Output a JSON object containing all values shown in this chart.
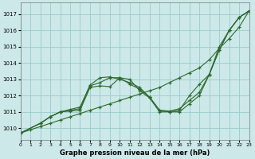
{
  "xlabel": "Graphe pression niveau de la mer (hPa)",
  "bg_color": "#cce8e8",
  "grid_color": "#99cccc",
  "line_color": "#2d6a2d",
  "xmin": 0,
  "xmax": 23,
  "ymin": 1009.3,
  "ymax": 1017.7,
  "yticks": [
    1010,
    1011,
    1012,
    1013,
    1014,
    1015,
    1016,
    1017
  ],
  "xticks": [
    0,
    1,
    2,
    3,
    4,
    5,
    6,
    7,
    8,
    9,
    10,
    11,
    12,
    13,
    14,
    15,
    16,
    17,
    18,
    19,
    20,
    21,
    22,
    23
  ],
  "lines": [
    {
      "x": [
        0,
        1,
        2,
        3,
        4,
        5,
        6,
        7,
        8,
        9,
        10,
        11,
        12,
        13,
        14,
        15,
        16,
        17,
        18,
        19,
        20,
        21,
        22,
        23
      ],
      "y": [
        1009.7,
        1009.9,
        1010.1,
        1010.3,
        1010.5,
        1010.7,
        1010.9,
        1011.1,
        1011.3,
        1011.5,
        1011.7,
        1011.9,
        1012.1,
        1012.3,
        1012.5,
        1012.8,
        1013.1,
        1013.4,
        1013.7,
        1014.2,
        1014.9,
        1015.5,
        1016.2,
        1017.2
      ]
    },
    {
      "x": [
        0,
        2,
        3,
        4,
        5,
        6,
        7,
        8,
        9,
        10,
        11,
        12,
        13,
        14,
        15,
        16,
        17,
        18,
        19,
        20,
        21,
        22,
        23
      ],
      "y": [
        1009.7,
        1010.3,
        1010.7,
        1011.0,
        1011.1,
        1011.2,
        1012.6,
        1012.8,
        1013.1,
        1013.1,
        1012.7,
        1012.4,
        1011.9,
        1011.1,
        1011.0,
        1011.1,
        1012.0,
        1012.7,
        1013.3,
        1015.0,
        1016.0,
        1016.8,
        1017.2
      ]
    },
    {
      "x": [
        0,
        2,
        3,
        4,
        5,
        6,
        7,
        8,
        9,
        10,
        11,
        12,
        13,
        14,
        15,
        16,
        17,
        18,
        19,
        20,
        21,
        22,
        23
      ],
      "y": [
        1009.7,
        1010.3,
        1010.7,
        1011.0,
        1011.15,
        1011.3,
        1012.65,
        1013.1,
        1013.15,
        1013.0,
        1012.8,
        1012.5,
        1011.9,
        1011.1,
        1011.05,
        1011.2,
        1011.7,
        1012.2,
        1013.3,
        1014.8,
        1016.0,
        1016.8,
        1017.2
      ]
    },
    {
      "x": [
        0,
        2,
        3,
        4,
        5,
        6,
        7,
        8,
        9,
        10,
        11,
        12,
        13,
        14,
        15,
        16,
        17,
        18,
        19,
        20,
        21,
        22,
        23
      ],
      "y": [
        1009.7,
        1010.3,
        1010.7,
        1011.0,
        1011.05,
        1011.1,
        1012.5,
        1012.6,
        1012.55,
        1013.1,
        1013.0,
        1012.3,
        1011.85,
        1011.0,
        1011.0,
        1011.0,
        1011.5,
        1012.0,
        1013.3,
        1014.8,
        1016.0,
        1016.8,
        1017.2
      ]
    }
  ]
}
